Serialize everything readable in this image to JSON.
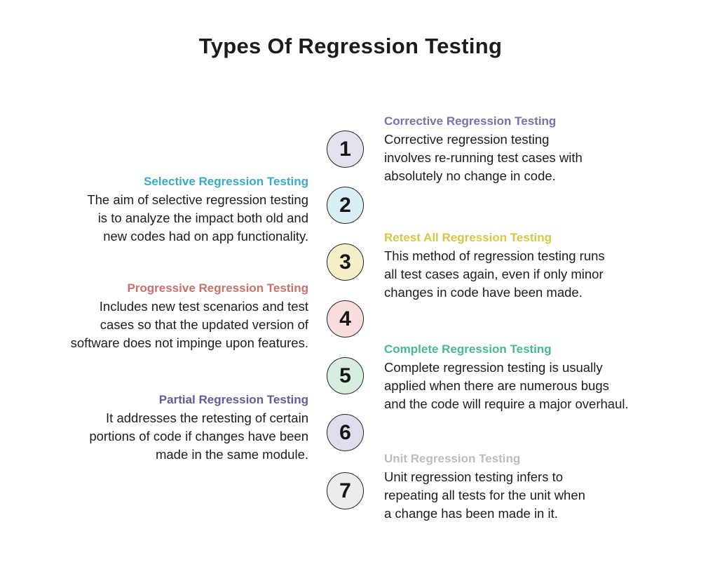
{
  "title": "Types Of Regression Testing",
  "text_color": "#1D1D1F",
  "circle_border_color": "#232323",
  "left_blocks": [
    {
      "heading": "Selective Regression Testing",
      "heading_color": "#3BA8CB",
      "body": "The aim of selective regression testing\nis to analyze the impact both old and\nnew codes had on app functionality."
    },
    {
      "heading": "Progressive Regression Testing",
      "heading_color": "#C8706A",
      "body": "Includes new test scenarios and test\ncases so that the updated version of\nsoftware does not impinge upon features."
    },
    {
      "heading": "Partial Regression Testing",
      "heading_color": "#655B97",
      "body": "It addresses the retesting of certain\nportions of code if changes have been\nmade in the same module."
    }
  ],
  "right_blocks": [
    {
      "heading": "Corrective Regression Testing",
      "heading_color": "#7B6FAF",
      "body": "Corrective regression testing\ninvolves re-running test cases with\nabsolutely no change in code."
    },
    {
      "heading": "Retest All Regression Testing",
      "heading_color": "#D9C647",
      "body": "This method of regression testing runs\nall test cases again, even if only minor\nchanges in code have been made."
    },
    {
      "heading": "Complete Regression Testing",
      "heading_color": "#47B890",
      "body": "Complete regression testing is usually\napplied when there are numerous bugs\nand the code will require a major overhaul."
    },
    {
      "heading": "Unit Regression Testing",
      "heading_color": "#BBBDBD",
      "body": "Unit regression testing infers to\nrepeating all tests for the unit when\na change has been made in it."
    }
  ],
  "steps": [
    {
      "number": "1",
      "fill": "#E4E0ED"
    },
    {
      "number": "2",
      "fill": "#D9EEF5"
    },
    {
      "number": "3",
      "fill": "#F6F0C9"
    },
    {
      "number": "4",
      "fill": "#F8DDDE"
    },
    {
      "number": "5",
      "fill": "#D7EEDE"
    },
    {
      "number": "6",
      "fill": "#E0DCEC"
    },
    {
      "number": "7",
      "fill": "#EAEDEA"
    }
  ]
}
